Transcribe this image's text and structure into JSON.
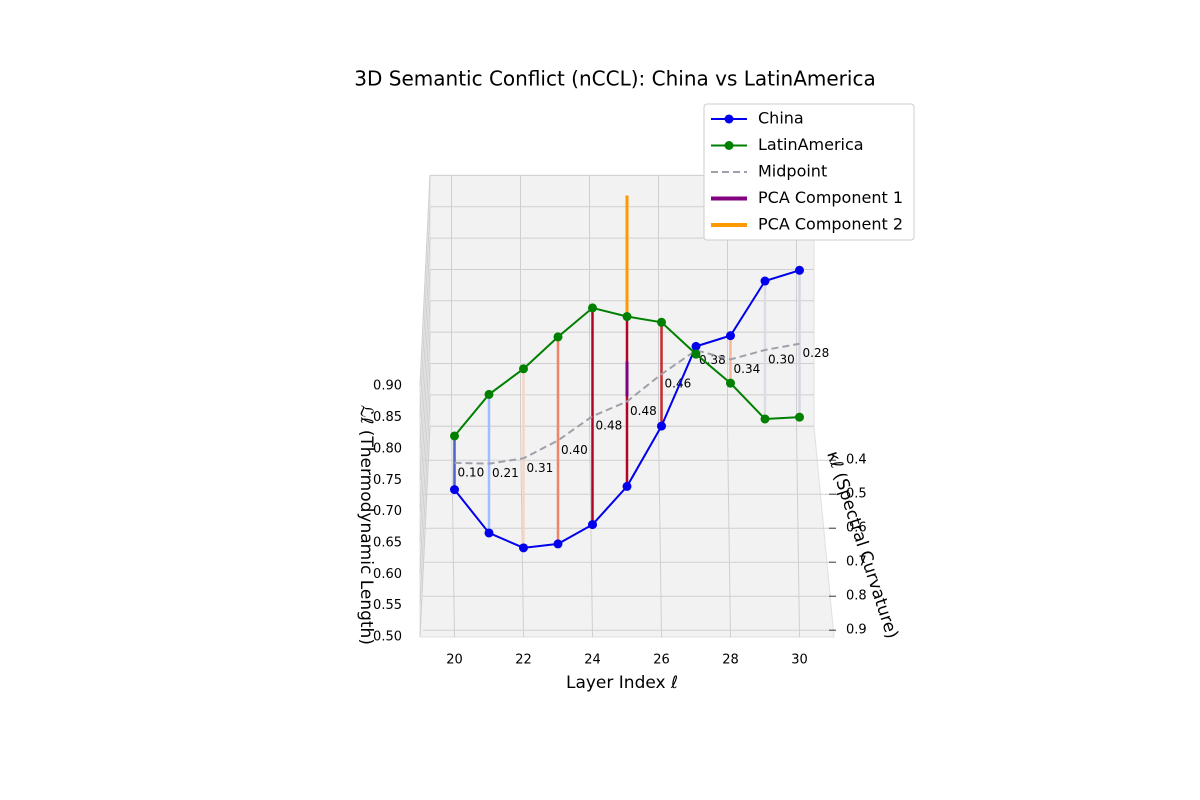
{
  "chart_data": {
    "type": "line3d",
    "title": "3D Semantic Conflict (nCCL): China vs LatinAmerica",
    "xlabel": "Layer Index ℓ",
    "ylabel": "κℓ (Spectral Curvature)",
    "zlabel": "ℒℓ (Thermodynamic Length)",
    "x": [
      20,
      21,
      22,
      23,
      24,
      25,
      26,
      27,
      28,
      29,
      30
    ],
    "xlim": [
      19,
      31
    ],
    "xticks": [
      20,
      22,
      24,
      26,
      28,
      30
    ],
    "ylim": [
      0.3,
      0.92
    ],
    "yticks": [
      0.4,
      0.5,
      0.6,
      0.7,
      0.8,
      0.9
    ],
    "zlim": [
      0.5,
      0.9
    ],
    "zticks": [
      {
        "value": 0.5,
        "label": "0.50"
      },
      {
        "value": 0.55,
        "label": "0.55"
      },
      {
        "value": 0.6,
        "label": "0.60"
      },
      {
        "value": 0.65,
        "label": "0.65"
      },
      {
        "value": 0.7,
        "label": "0.70"
      },
      {
        "value": 0.75,
        "label": "0.75"
      },
      {
        "value": 0.8,
        "label": "0.80"
      },
      {
        "value": 0.85,
        "label": "0.85"
      },
      {
        "value": 0.9,
        "label": "0.90"
      }
    ],
    "grid": true,
    "series": [
      {
        "name": "China",
        "color": "#0000ee",
        "kappa": [
          0.8,
          0.78,
          0.75,
          0.72,
          0.7,
          0.68,
          0.65,
          0.6,
          0.55,
          0.5,
          0.45
        ],
        "values": [
          0.67,
          0.59,
          0.55,
          0.54,
          0.56,
          0.61,
          0.69,
          0.79,
          0.78,
          0.84,
          0.83
        ]
      },
      {
        "name": "LatinAmerica",
        "color": "#008000",
        "kappa": [
          0.55,
          0.52,
          0.5,
          0.48,
          0.45,
          0.42,
          0.4,
          0.42,
          0.45,
          0.5,
          0.55
        ],
        "values": [
          0.62,
          0.67,
          0.7,
          0.74,
          0.77,
          0.74,
          0.72,
          0.68,
          0.65,
          0.62,
          0.65
        ]
      }
    ],
    "distances": {
      "values": [
        0.1,
        0.21,
        0.31,
        0.4,
        0.48,
        0.48,
        0.46,
        0.38,
        0.34,
        0.3,
        0.28
      ],
      "value_labels": [
        "0.10",
        "0.21",
        "0.31",
        "0.40",
        "0.48",
        "0.48",
        "0.46",
        "0.38",
        "0.34",
        "0.30",
        "0.28"
      ],
      "colors": [
        "#4f62c8",
        "#9ebeff",
        "#f4d6c6",
        "#ee8468",
        "#b40426",
        "#b40426",
        "#c42a30",
        "#f5a583",
        "#f7b89c",
        "#dcdde2",
        "#d5d8e2"
      ]
    },
    "midpoint": {
      "name": "Midpoint",
      "color": "#a0a0aa"
    },
    "pca": [
      {
        "name": "PCA Component 1",
        "color": "#800080"
      },
      {
        "name": "PCA Component 2",
        "color": "#ff9900"
      }
    ]
  }
}
